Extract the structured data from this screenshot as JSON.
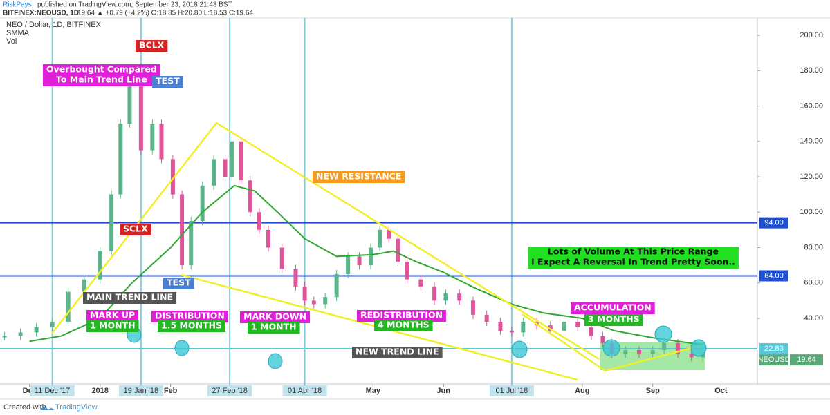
{
  "header": {
    "author": "RiskPays",
    "published": "published on TradingView.com, September 23, 2018 21:43 BST",
    "symbol": "BITFINEX:NEOUSD, 1D",
    "quote": "19.64 ▲ +0.79 (+4.2%) O:18.85 H:20.80 L:18.53 C:19.64"
  },
  "footer": {
    "created": "Created with",
    "brand": "TradingView"
  },
  "chart_data": {
    "type": "candlestick",
    "xlim": [
      "2017-11-18",
      "2018-10-17"
    ],
    "ylim": [
      2.9,
      209.8
    ],
    "yticks": [
      {
        "value": 40,
        "label": "40.00"
      },
      {
        "value": 60,
        "label": "60.00"
      },
      {
        "value": 80,
        "label": "80.00"
      },
      {
        "value": 100,
        "label": "100.00"
      },
      {
        "value": 120,
        "label": "120.00"
      },
      {
        "value": 140,
        "label": "140.00"
      },
      {
        "value": 160,
        "label": "160.00"
      },
      {
        "value": 180,
        "label": "180.00"
      },
      {
        "value": 200,
        "label": "200.00"
      }
    ],
    "xticks": [
      {
        "value": "2017-12-01",
        "label": "Dec"
      },
      {
        "value": "2017-12-11",
        "label": "11 Dec '17",
        "highlight": true
      },
      {
        "value": "2018-01-01",
        "label": "2018"
      },
      {
        "value": "2018-01-19",
        "label": "19 Jan '18",
        "highlight": true
      },
      {
        "value": "2018-02-01",
        "label": "Feb"
      },
      {
        "value": "2018-02-27",
        "label": "27 Feb '18",
        "highlight": true
      },
      {
        "value": "2018-04-01",
        "label": "01 Apr '18",
        "highlight": true
      },
      {
        "value": "2018-05-01",
        "label": "May"
      },
      {
        "value": "2018-06-01",
        "label": "Jun"
      },
      {
        "value": "2018-07-01",
        "label": "01 Jul '18",
        "highlight": true
      },
      {
        "value": "2018-08-01",
        "label": "Aug"
      },
      {
        "value": "2018-09-01",
        "label": "Sep"
      },
      {
        "value": "2018-10-01",
        "label": "Oct"
      }
    ],
    "series": [
      {
        "name": "NEO / Dollar, 1D, BITFINEX",
        "up_color": "#5bb58a",
        "down_color": "#e0559a",
        "x": [
          "2017-11-20",
          "2017-11-27",
          "2017-12-04",
          "2017-12-11",
          "2017-12-18",
          "2017-12-25",
          "2018-01-01",
          "2018-01-06",
          "2018-01-10",
          "2018-01-14",
          "2018-01-19",
          "2018-01-24",
          "2018-01-28",
          "2018-02-02",
          "2018-02-06",
          "2018-02-10",
          "2018-02-15",
          "2018-02-20",
          "2018-02-25",
          "2018-02-28",
          "2018-03-04",
          "2018-03-08",
          "2018-03-12",
          "2018-03-16",
          "2018-03-22",
          "2018-03-28",
          "2018-04-01",
          "2018-04-05",
          "2018-04-10",
          "2018-04-15",
          "2018-04-20",
          "2018-04-25",
          "2018-04-30",
          "2018-05-04",
          "2018-05-08",
          "2018-05-12",
          "2018-05-16",
          "2018-05-22",
          "2018-05-28",
          "2018-06-02",
          "2018-06-08",
          "2018-06-14",
          "2018-06-20",
          "2018-06-26",
          "2018-07-01",
          "2018-07-06",
          "2018-07-12",
          "2018-07-18",
          "2018-07-24",
          "2018-07-30",
          "2018-08-05",
          "2018-08-10",
          "2018-08-14",
          "2018-08-20",
          "2018-08-26",
          "2018-09-01",
          "2018-09-06",
          "2018-09-12",
          "2018-09-18",
          "2018-09-23"
        ],
        "values": [
          30,
          32,
          35,
          38,
          55,
          62,
          78,
          110,
          150,
          175,
          135,
          150,
          130,
          110,
          70,
          95,
          115,
          130,
          120,
          140,
          118,
          100,
          90,
          80,
          68,
          58,
          50,
          48,
          52,
          65,
          75,
          70,
          80,
          90,
          85,
          72,
          62,
          58,
          50,
          54,
          50,
          42,
          38,
          33,
          32,
          38,
          36,
          33,
          38,
          35,
          30,
          26,
          20,
          22,
          20,
          22,
          26,
          20,
          18,
          19.64
        ]
      },
      {
        "name": "SMMA",
        "color": "#2ea82e",
        "x": [
          "2017-12-01",
          "2017-12-15",
          "2018-01-01",
          "2018-01-15",
          "2018-02-01",
          "2018-02-15",
          "2018-03-01",
          "2018-03-10",
          "2018-03-20",
          "2018-04-01",
          "2018-04-15",
          "2018-05-01",
          "2018-05-10",
          "2018-05-20",
          "2018-06-01",
          "2018-06-15",
          "2018-07-01",
          "2018-07-15",
          "2018-08-01",
          "2018-08-15",
          "2018-09-01",
          "2018-09-23"
        ],
        "values": [
          27,
          30,
          40,
          60,
          80,
          100,
          115,
          112,
          100,
          85,
          75,
          76,
          78,
          72,
          66,
          57,
          48,
          43,
          40,
          33,
          29,
          25
        ]
      }
    ],
    "volume_label": "Vol",
    "hlines": [
      {
        "value": 94,
        "label": "94.00",
        "color": "#1f4fd1"
      },
      {
        "value": 64,
        "label": "64.00",
        "color": "#1f4fd1"
      },
      {
        "value": 22.83,
        "label": "22.83",
        "color": "#5bc8d8"
      }
    ],
    "last_price": 19.64,
    "symbol_label": "NEOUSD",
    "annotations": [
      {
        "lines": [
          "BCLX"
        ],
        "color": "#d62222",
        "text_color": "#ffffff"
      },
      {
        "lines": [
          "Overbought Compared",
          "To Main Trend Line"
        ],
        "color": "#e020d8",
        "text_color": "#ffffff"
      },
      {
        "lines": [
          "TEST"
        ],
        "color": "#4a7fd4",
        "text_color": "#ffffff"
      },
      {
        "lines": [
          "SCLX"
        ],
        "color": "#d62222",
        "text_color": "#ffffff"
      },
      {
        "lines": [
          "TEST"
        ],
        "color": "#4a7fd4",
        "text_color": "#ffffff"
      },
      {
        "lines": [
          "MAIN TREND LINE"
        ],
        "color": "#555555",
        "text_color": "#ffffff"
      },
      {
        "lines": [
          "MARK UP"
        ],
        "color": "#e020d8",
        "text_color": "#ffffff"
      },
      {
        "lines": [
          "1 MONTH"
        ],
        "color": "#22b822",
        "text_color": "#ffffff"
      },
      {
        "lines": [
          "DISTRIBUTION"
        ],
        "color": "#e020d8",
        "text_color": "#ffffff"
      },
      {
        "lines": [
          "1.5 MONTHS"
        ],
        "color": "#22b822",
        "text_color": "#ffffff"
      },
      {
        "lines": [
          "MARK DOWN"
        ],
        "color": "#e020d8",
        "text_color": "#ffffff"
      },
      {
        "lines": [
          "1 MONTH"
        ],
        "color": "#22b822",
        "text_color": "#ffffff"
      },
      {
        "lines": [
          "NEW RESISTANCE"
        ],
        "color": "#f59a1d",
        "text_color": "#ffffff"
      },
      {
        "lines": [
          "REDISTRIBUTION"
        ],
        "color": "#e020d8",
        "text_color": "#ffffff"
      },
      {
        "lines": [
          "4 MONTHS"
        ],
        "color": "#22b822",
        "text_color": "#ffffff"
      },
      {
        "lines": [
          "NEW TREND LINE"
        ],
        "color": "#555555",
        "text_color": "#ffffff"
      },
      {
        "lines": [
          "Lots of Volume At This Price Range",
          "I Expect A Reversal In Trend Pretty Soon.."
        ],
        "color": "#21e021",
        "text_color": "#111111"
      },
      {
        "lines": [
          "ACCUMULATION"
        ],
        "color": "#e020d8",
        "text_color": "#ffffff"
      },
      {
        "lines": [
          "3 MONTHS"
        ],
        "color": "#22b822",
        "text_color": "#ffffff"
      }
    ]
  }
}
